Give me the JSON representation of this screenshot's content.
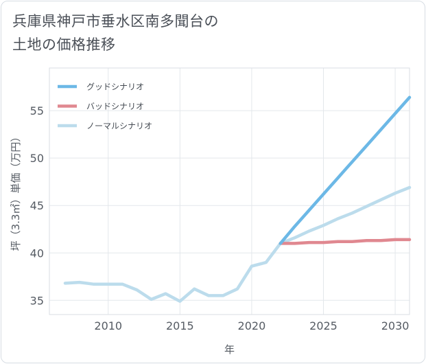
{
  "title_lines": [
    "兵庫県神戸市垂水区南多聞台の",
    "土地の価格推移"
  ],
  "chart_data": {
    "type": "line",
    "title": "兵庫県神戸市垂水区南多聞台の土地の価格推移",
    "xlabel": "年",
    "ylabel": "坪（3.3㎡）単価（万円）",
    "xlim": [
      2005.9,
      2031
    ],
    "ylim": [
      33.5,
      59.5
    ],
    "xticks": [
      2010,
      2015,
      2020,
      2025,
      2030
    ],
    "yticks": [
      35,
      40,
      45,
      50,
      55
    ],
    "grid": true,
    "legend_position": "top-left",
    "series": [
      {
        "name": "グッドシナリオ",
        "color": "#6cb8e6",
        "x": [
          2022,
          2023,
          2024,
          2025,
          2026,
          2027,
          2028,
          2029,
          2030,
          2031
        ],
        "y": [
          41.0,
          42.8,
          44.5,
          46.2,
          47.9,
          49.6,
          51.3,
          53.0,
          54.7,
          56.4
        ]
      },
      {
        "name": "バッドシナリオ",
        "color": "#e08890",
        "x": [
          2022,
          2023,
          2024,
          2025,
          2026,
          2027,
          2028,
          2029,
          2030,
          2031
        ],
        "y": [
          41.0,
          41.0,
          41.1,
          41.1,
          41.2,
          41.2,
          41.3,
          41.3,
          41.4,
          41.4
        ]
      },
      {
        "name": "ノーマルシナリオ",
        "color": "#bcdcec",
        "x": [
          2007,
          2008,
          2009,
          2010,
          2011,
          2012,
          2013,
          2014,
          2015,
          2016,
          2017,
          2018,
          2019,
          2020,
          2021,
          2022,
          2023,
          2024,
          2025,
          2026,
          2027,
          2028,
          2029,
          2030,
          2031
        ],
        "y": [
          36.8,
          36.9,
          36.7,
          36.7,
          36.7,
          36.1,
          35.1,
          35.7,
          34.9,
          36.2,
          35.5,
          35.5,
          36.2,
          38.6,
          39.0,
          41.0,
          41.6,
          42.3,
          42.9,
          43.6,
          44.2,
          44.9,
          45.6,
          46.3,
          46.9
        ]
      }
    ]
  }
}
